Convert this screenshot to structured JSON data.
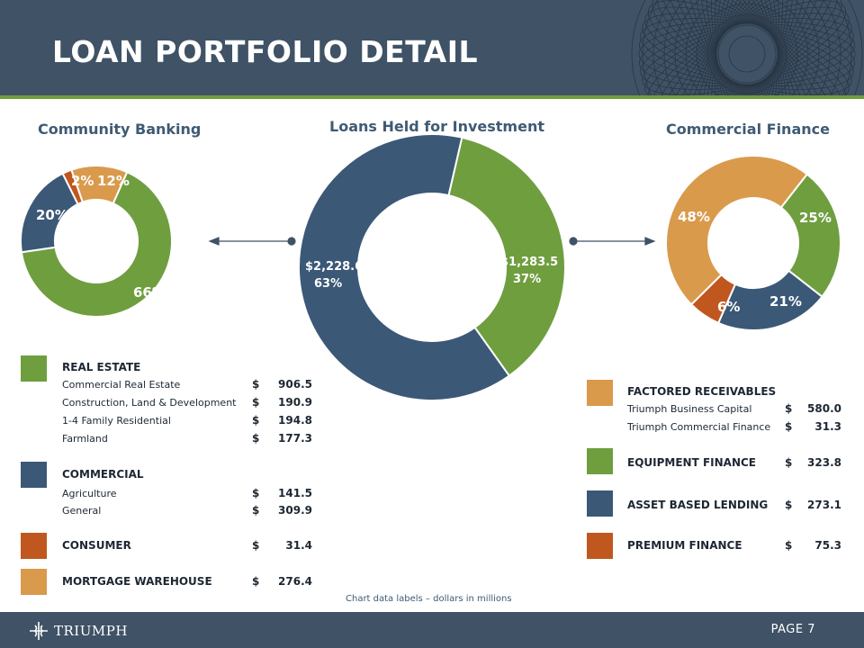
{
  "header": {
    "title": "LOAN PORTFOLIO DETAIL"
  },
  "colors": {
    "green": "#6f9e3f",
    "navy": "#3b5877",
    "orange": "#c0571f",
    "tan": "#d99a4c"
  },
  "chart_data": [
    {
      "type": "pie",
      "title": "Community Banking",
      "slices": [
        {
          "category": "Real Estate",
          "percent": 66,
          "label": "66%",
          "color": "#6f9e3f"
        },
        {
          "category": "Commercial",
          "percent": 20,
          "label": "20%",
          "color": "#3b5877"
        },
        {
          "category": "Consumer",
          "percent": 2,
          "label": "2%",
          "color": "#c0571f"
        },
        {
          "category": "Mortgage Warehouse",
          "percent": 12,
          "label": "12%",
          "color": "#d99a4c"
        }
      ]
    },
    {
      "type": "pie",
      "title": "Loans Held for Investment",
      "slices": [
        {
          "category": "Commercial Finance",
          "value": 1283.5,
          "percent": 37,
          "value_label": "$1,283.5",
          "percent_label": "37%",
          "color": "#6f9e3f"
        },
        {
          "category": "Community Banking",
          "value": 2228.6,
          "percent": 63,
          "value_label": "$2,228.6",
          "percent_label": "63%",
          "color": "#3b5877"
        }
      ]
    },
    {
      "type": "pie",
      "title": "Commercial Finance",
      "slices": [
        {
          "category": "Equipment Finance",
          "percent": 25,
          "label": "25%",
          "color": "#6f9e3f"
        },
        {
          "category": "Asset Based Lending",
          "percent": 21,
          "label": "21%",
          "color": "#3b5877"
        },
        {
          "category": "Premium Finance",
          "percent": 6,
          "label": "6%",
          "color": "#c0571f"
        },
        {
          "category": "Factored Receivables",
          "percent": 48,
          "label": "48%",
          "color": "#d99a4c"
        }
      ]
    }
  ],
  "left_legend": {
    "real_estate": {
      "heading": "REAL ESTATE",
      "items": [
        {
          "label": "Commercial Real Estate",
          "currency": "$",
          "amount": "906.5"
        },
        {
          "label": "Construction, Land & Development",
          "currency": "$",
          "amount": "190.9"
        },
        {
          "label": "1-4 Family Residential",
          "currency": "$",
          "amount": "194.8"
        },
        {
          "label": "Farmland",
          "currency": "$",
          "amount": "177.3"
        }
      ]
    },
    "commercial": {
      "heading": "COMMERCIAL",
      "items": [
        {
          "label": "Agriculture",
          "currency": "$",
          "amount": "141.5"
        },
        {
          "label": "General",
          "currency": "$",
          "amount": "309.9"
        }
      ]
    },
    "consumer": {
      "heading": "CONSUMER",
      "currency": "$",
      "amount": "31.4"
    },
    "mortgage_warehouse": {
      "heading": "MORTGAGE WAREHOUSE",
      "currency": "$",
      "amount": "276.4"
    }
  },
  "right_legend": {
    "factored_receivables": {
      "heading": "FACTORED RECEIVABLES",
      "items": [
        {
          "label": "Triumph Business Capital",
          "currency": "$",
          "amount": "580.0"
        },
        {
          "label": "Triumph Commercial Finance",
          "currency": "$",
          "amount": "31.3"
        }
      ]
    },
    "equipment_finance": {
      "heading": "EQUIPMENT FINANCE",
      "currency": "$",
      "amount": "323.8"
    },
    "asset_based_lending": {
      "heading": "ASSET BASED LENDING",
      "currency": "$",
      "amount": "273.1"
    },
    "premium_finance": {
      "heading": "PREMIUM FINANCE",
      "currency": "$",
      "amount": "75.3"
    }
  },
  "note": "Chart data labels – dollars in millions",
  "footer": {
    "logo_text": "TRIUMPH",
    "page_label": "PAGE 7"
  }
}
